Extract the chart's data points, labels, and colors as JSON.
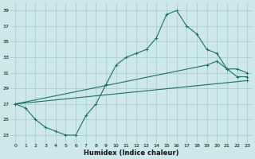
{
  "xlabel": "Humidex (Indice chaleur)",
  "bg_color": "#cce8ea",
  "grid_color": "#aacdd0",
  "line_color": "#1a7060",
  "xlim": [
    -0.5,
    23.5
  ],
  "ylim": [
    22,
    40
  ],
  "yticks": [
    23,
    25,
    27,
    29,
    31,
    33,
    35,
    37,
    39
  ],
  "xticks": [
    0,
    1,
    2,
    3,
    4,
    5,
    6,
    7,
    8,
    9,
    10,
    11,
    12,
    13,
    14,
    15,
    16,
    17,
    18,
    19,
    20,
    21,
    22,
    23
  ],
  "line1_x": [
    0,
    1,
    2,
    3,
    4,
    5,
    6,
    7,
    8,
    9,
    10,
    11,
    12,
    13,
    14,
    15,
    16,
    17,
    18,
    19,
    20,
    21,
    22,
    23
  ],
  "line1_y": [
    27,
    26.5,
    25,
    24,
    23.5,
    23,
    23,
    25.5,
    27,
    29.5,
    32,
    33,
    33.5,
    34,
    35.5,
    38.5,
    39,
    37,
    36,
    34,
    33.5,
    31.5,
    30.5,
    30.5
  ],
  "line2_x": [
    0,
    19,
    20,
    21,
    22,
    23
  ],
  "line2_y": [
    27,
    32,
    32.5,
    31.5,
    31.5,
    31
  ],
  "line3_x": [
    0,
    23
  ],
  "line3_y": [
    27,
    30
  ]
}
